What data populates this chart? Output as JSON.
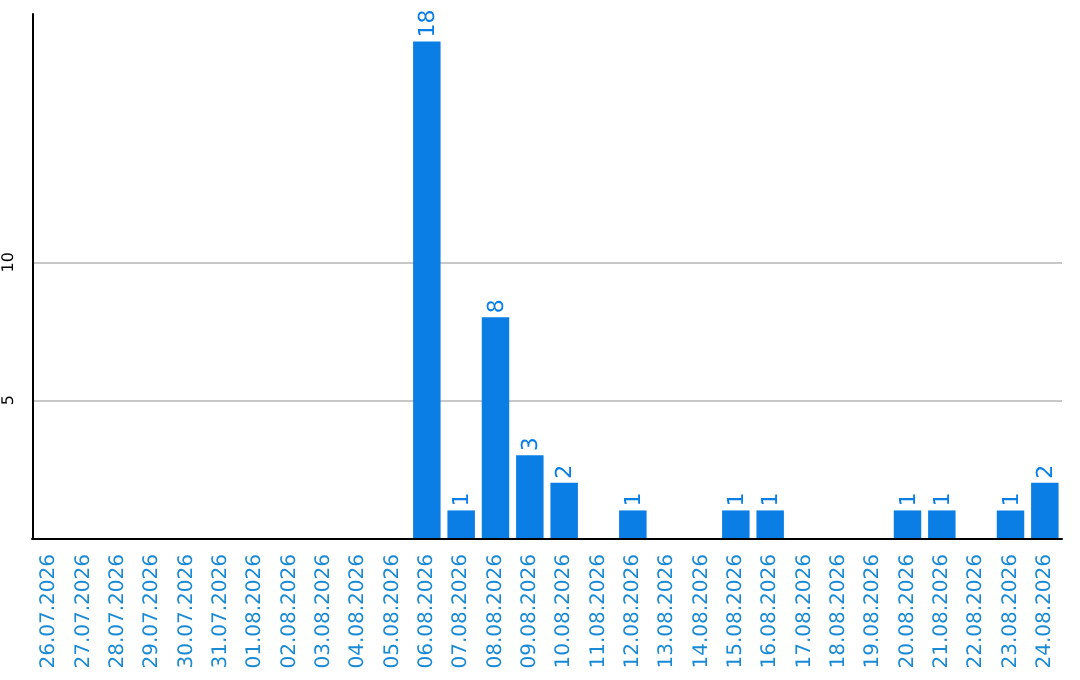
{
  "chart_data": {
    "type": "bar",
    "categories": [
      "26.07.2026",
      "27.07.2026",
      "28.07.2026",
      "29.07.2026",
      "30.07.2026",
      "31.07.2026",
      "01.08.2026",
      "02.08.2026",
      "03.08.2026",
      "04.08.2026",
      "05.08.2026",
      "06.08.2026",
      "07.08.2026",
      "08.08.2026",
      "09.08.2026",
      "10.08.2026",
      "11.08.2026",
      "12.08.2026",
      "13.08.2026",
      "14.08.2026",
      "15.08.2026",
      "16.08.2026",
      "17.08.2026",
      "18.08.2026",
      "19.08.2026",
      "20.08.2026",
      "21.08.2026",
      "22.08.2026",
      "23.08.2026",
      "24.08.2026"
    ],
    "values": [
      0,
      0,
      0,
      0,
      0,
      0,
      0,
      0,
      0,
      0,
      0,
      18,
      1,
      8,
      3,
      2,
      0,
      1,
      0,
      0,
      1,
      1,
      0,
      0,
      0,
      1,
      1,
      0,
      1,
      2
    ],
    "value_labels": [
      null,
      null,
      null,
      null,
      null,
      null,
      null,
      null,
      null,
      null,
      null,
      "18",
      "1",
      "8",
      "3",
      "2",
      null,
      "1",
      null,
      null,
      "1",
      "1",
      null,
      null,
      null,
      "1",
      "1",
      null,
      "1",
      "2"
    ],
    "color": "#0a7ee4",
    "ylim": [
      0,
      19
    ],
    "yticks": [
      {
        "value": 0,
        "label": null
      },
      5,
      10
    ],
    "grid": "y"
  }
}
